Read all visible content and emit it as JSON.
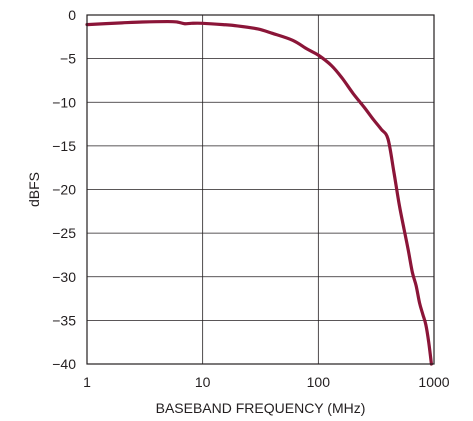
{
  "chart_data": {
    "type": "line",
    "title": "",
    "xlabel": "BASEBAND FREQUENCY (MHz)",
    "ylabel": "dBFS",
    "xscale": "log",
    "xlim": [
      1,
      1000
    ],
    "ylim": [
      -40,
      0
    ],
    "grid": true,
    "x_ticks": [
      1,
      10,
      100,
      1000
    ],
    "x_tick_labels": [
      "1",
      "10",
      "100",
      "1000"
    ],
    "y_ticks": [
      0,
      -5,
      -10,
      -15,
      -20,
      -25,
      -30,
      -35,
      -40
    ],
    "y_tick_labels": [
      "0",
      "−5",
      "−10",
      "−15",
      "−20",
      "−25",
      "−30",
      "−35",
      "−40"
    ],
    "series": [
      {
        "color": "#8b1538",
        "x": [
          1,
          2,
          3,
          5,
          6,
          7,
          8,
          10,
          15,
          20,
          30,
          40,
          60,
          80,
          100,
          130,
          160,
          200,
          250,
          300,
          350,
          400,
          450,
          500,
          550,
          600,
          650,
          700,
          750,
          800,
          850,
          900,
          950
        ],
        "y": [
          -1.1,
          -0.9,
          -0.8,
          -0.75,
          -0.8,
          -1.0,
          -0.95,
          -0.95,
          -1.1,
          -1.25,
          -1.6,
          -2.1,
          -2.9,
          -3.9,
          -4.6,
          -5.8,
          -7.2,
          -9.0,
          -10.6,
          -12.0,
          -13.1,
          -14.2,
          -18.0,
          -21.7,
          -24.5,
          -27.0,
          -29.5,
          -31.0,
          -33.0,
          -34.3,
          -35.5,
          -37.5,
          -40.0
        ]
      }
    ]
  }
}
